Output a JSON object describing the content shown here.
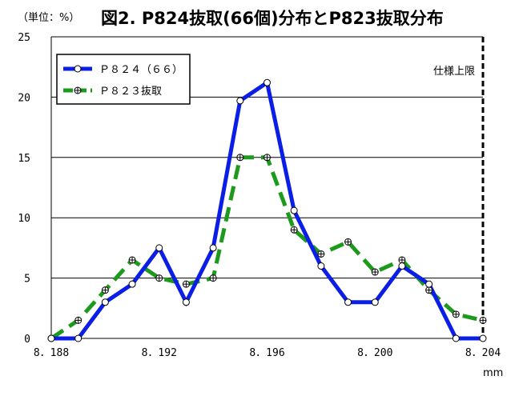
{
  "chart_data": {
    "type": "line",
    "title": "図2. P824抜取(66個)分布とP823抜取分布",
    "ylabel": "（単位：%）",
    "xlabel": "mm",
    "ylim": [
      0,
      25
    ],
    "yticks": [
      0,
      5,
      10,
      15,
      20,
      25
    ],
    "xlim": [
      8.188,
      8.204
    ],
    "xtick_values": [
      8.188,
      8.192,
      8.196,
      8.2,
      8.204
    ],
    "xtick_labels": [
      "8．188",
      "8．192",
      "8．196",
      "8．200",
      "8．204"
    ],
    "x": [
      8.188,
      8.189,
      8.19,
      8.191,
      8.192,
      8.193,
      8.194,
      8.195,
      8.196,
      8.197,
      8.198,
      8.199,
      8.2,
      8.201,
      8.202,
      8.203,
      8.204
    ],
    "series": [
      {
        "name": "Ｐ８２４（６６）",
        "color": "#0a1ee6",
        "dash": "solid",
        "marker": "circle",
        "values": [
          0,
          0,
          3,
          4.5,
          7.5,
          3,
          7.5,
          19.7,
          21.2,
          10.6,
          6,
          3,
          3,
          6,
          4.5,
          0,
          0
        ]
      },
      {
        "name": "Ｐ８２３抜取",
        "color": "#1c9a1c",
        "dash": "dashed",
        "marker": "crossed-circle",
        "values": [
          0,
          1.5,
          4,
          6.5,
          5,
          4.5,
          5,
          15,
          15,
          9,
          7,
          8,
          5.5,
          6.5,
          4,
          2,
          1.5
        ]
      }
    ],
    "grid": "horizontal",
    "legend": "top-left",
    "annotations": [
      {
        "text": "仕様上限",
        "x": 8.204,
        "style": "vertical-dashed-line"
      }
    ]
  }
}
